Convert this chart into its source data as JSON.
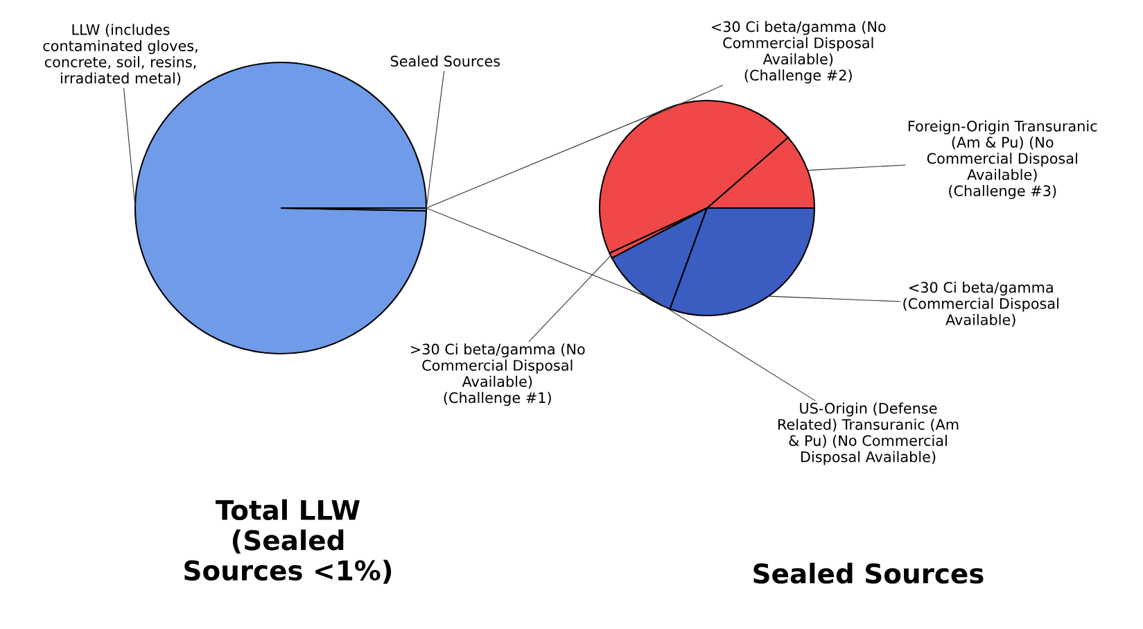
{
  "chart_data": [
    {
      "type": "pie",
      "title": "Total LLW\n(Sealed\nSources <1%)",
      "categories": [
        "LLW (includes\ncontaminated gloves,\nconcrete, soil, resins,\nirradiated metal)",
        "Sealed Sources"
      ],
      "values": [
        99.7,
        0.3
      ],
      "colors": [
        "#6f9be8",
        "#6f9be8"
      ]
    },
    {
      "type": "pie",
      "title": "Sealed Sources",
      "categories": [
        "Foreign-Origin Transuranic\n(Am & Pu) (No\nCommercial Disposal\nAvailable)\n(Challenge #3)",
        "<30 Ci beta/gamma (No\nCommercial Disposal\nAvailable)\n(Challenge #2)",
        ">30 Ci beta/gamma (No\nCommercial Disposal\nAvailable)\n(Challenge #1)",
        "US-Origin (Defense\nRelated) Transuranic (Am\n& Pu) (No Commercial\nDisposal Available)",
        "<30 Ci beta/gamma\n(Commercial Disposal\nAvailable)"
      ],
      "values": [
        11.4,
        45.5,
        0.8,
        11.7,
        30.6
      ],
      "colors": [
        "#f04848",
        "#f04848",
        "#f04848",
        "#3b5cc0",
        "#3b5cc0"
      ]
    }
  ]
}
